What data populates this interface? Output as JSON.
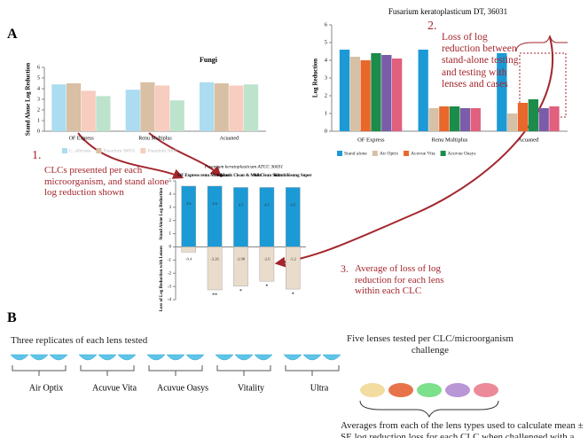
{
  "chart_data": [
    {
      "type": "bar",
      "title": "Fungi",
      "y_label": "Stand Alone Log Reduction",
      "categories": [
        "OF Express",
        "Renu Multiplus",
        "Acuaned"
      ],
      "series": [
        {
          "name": "C. albicans",
          "color": "#abdcf0",
          "values": [
            4.4,
            3.9,
            4.6
          ]
        },
        {
          "name": "Fusarium 36031",
          "color": "#d9bfa3",
          "values": [
            4.5,
            4.6,
            4.5
          ]
        },
        {
          "name": "Fusarium 5600",
          "color": "#f6cdbf",
          "values": [
            3.8,
            4.3,
            4.3
          ]
        },
        {
          "color": "#bde3cc",
          "values": [
            3.3,
            2.9,
            4.4
          ]
        }
      ],
      "ylim": [
        0,
        6
      ],
      "yticks": [
        0,
        1,
        2,
        3,
        4,
        5,
        6
      ]
    },
    {
      "type": "bar",
      "title": "Fusarium keratoplasticum DT, 36031",
      "y_label": "Log Reduction",
      "categories": [
        "OF Express",
        "Renu Multiplus",
        "Acuaned"
      ],
      "series": [
        {
          "name": "Stand alone",
          "color": "#1b9ad6",
          "values": [
            4.6,
            4.6,
            4.4
          ]
        },
        {
          "name": "Air Optix",
          "color": "#d6c0a6",
          "values": [
            4.2,
            1.3,
            1.0
          ]
        },
        {
          "name": "Acuvue Vita",
          "color": "#e8672b",
          "values": [
            4.0,
            1.4,
            1.6
          ]
        },
        {
          "name": "Acuvue Oasys",
          "color": "#1c8c4b",
          "values": [
            4.4,
            1.4,
            1.8
          ]
        },
        {
          "color": "#7b5ca8",
          "values": [
            4.3,
            1.3,
            1.3
          ]
        },
        {
          "color": "#e0607e",
          "values": [
            4.1,
            1.3,
            1.4
          ]
        }
      ],
      "ylim": [
        0,
        6
      ],
      "yticks": [
        0,
        1,
        2,
        3,
        4,
        5,
        6
      ]
    },
    {
      "type": "bar",
      "title": "Fusarium keratoplasticum ATCC 36031",
      "y_label_top": "Stand Alone Log Reduction",
      "y_label_bottom": "Loss of Log Reduction with Lenses",
      "categories": [
        "OF Express",
        "renu Multiplus",
        "Kontk Clean & Moist",
        "All Clean Soft",
        "Kombilösung Super"
      ],
      "stacked": true,
      "show_values": true,
      "series": [
        {
          "color": "#1b9ad6",
          "values": [
            4.6,
            4.6,
            4.5,
            4.5,
            4.5
          ]
        },
        {
          "color": "#e9dccb",
          "values": [
            -0.4,
            -3.26,
            -2.98,
            -2.6,
            -3.2
          ]
        }
      ],
      "significance": [
        null,
        "**",
        "*",
        "*",
        "*"
      ],
      "ylim": [
        -4,
        5
      ],
      "yticks": [
        -4,
        -3,
        -2,
        -1,
        0,
        1,
        2,
        3,
        4,
        5
      ]
    }
  ],
  "panel_a": {
    "label": "A",
    "note_1": {
      "number": "1.",
      "text": "CLCs presented per each microorganism, and stand alone log reduction shown"
    },
    "note_2": {
      "number": "2.",
      "text": "Loss of log reduction between stand-alone testing and testing with lenses and cases"
    },
    "note_3": {
      "number": "3.",
      "text": "Average of loss of log reduction for each lens within each CLC"
    }
  },
  "panel_b": {
    "label": "B",
    "caption": "Three replicates of each lens tested",
    "lenses": [
      "Air Optix",
      "Acuvue Vita",
      "Acuvue Oasys",
      "Vitality",
      "Ultra"
    ],
    "right_caption": "Five lenses tested per CLC/microorganism challenge",
    "summary": "Averages from each of the lens types used to calculate mean ± SE log reduction loss for each CLC when challenged with a microorganism"
  }
}
